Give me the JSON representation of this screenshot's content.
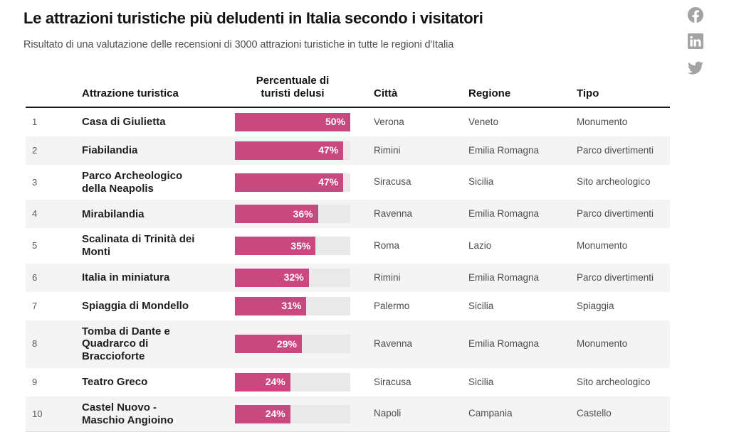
{
  "page": {
    "title": "Le attrazioni turistiche più deludenti in Italia secondo i visitatori",
    "subtitle": "Risultato di una valutazione delle recensioni di 3000 attrazioni turistiche in tutte le regioni d'Italia"
  },
  "social": {
    "facebook_label": "Condividi su Facebook",
    "linkedin_label": "Condividi su LinkedIn",
    "twitter_label": "Condividi su Twitter"
  },
  "table": {
    "headers": {
      "rank": "",
      "attraction": "Attrazione turistica",
      "percent_line1": "Percentuale di",
      "percent_line2": "turisti delusi",
      "city": "Città",
      "region": "Regione",
      "type": "Tipo"
    }
  },
  "chart_data": {
    "type": "table",
    "title": "Le attrazioni turistiche più deludenti in Italia secondo i visitatori",
    "subtitle": "Risultato di una valutazione delle recensioni di 3000 attrazioni turistiche in tutte le regioni d'Italia",
    "columns": [
      "Attrazione turistica",
      "Percentuale di turisti delusi",
      "Città",
      "Regione",
      "Tipo"
    ],
    "bar_column": "Percentuale di turisti delusi",
    "bar_axis_max": 50,
    "bar_unit": "%",
    "rows": [
      {
        "rank": "1",
        "attraction": "Casa di Giulietta",
        "percent": 50,
        "city": "Verona",
        "region": "Veneto",
        "type": "Monumento"
      },
      {
        "rank": "2",
        "attraction": "Fiabilandia",
        "percent": 47,
        "city": "Rimini",
        "region": "Emilia Romagna",
        "type": "Parco divertimenti"
      },
      {
        "rank": "3",
        "attraction": "Parco Archeologico della Neapolis",
        "percent": 47,
        "city": "Siracusa",
        "region": "Sicilia",
        "type": "Sito archeologico"
      },
      {
        "rank": "4",
        "attraction": "Mirabilandia",
        "percent": 36,
        "city": "Ravenna",
        "region": "Emilia Romagna",
        "type": "Parco divertimenti"
      },
      {
        "rank": "5",
        "attraction": "Scalinata di Trinità dei Monti",
        "percent": 35,
        "city": "Roma",
        "region": "Lazio",
        "type": "Monumento"
      },
      {
        "rank": "6",
        "attraction": "Italia in miniatura",
        "percent": 32,
        "city": "Rimini",
        "region": "Emilia Romagna",
        "type": "Parco divertimenti"
      },
      {
        "rank": "7",
        "attraction": "Spiaggia di Mondello",
        "percent": 31,
        "city": "Palermo",
        "region": "Sicilia",
        "type": "Spiaggia"
      },
      {
        "rank": "8",
        "attraction": "Tomba di Dante e Quadrarco di Braccioforte",
        "percent": 29,
        "city": "Ravenna",
        "region": "Emilia Romagna",
        "type": "Monumento"
      },
      {
        "rank": "9",
        "attraction": "Teatro Greco",
        "percent": 24,
        "city": "Siracusa",
        "region": "Sicilia",
        "type": "Sito archeologico"
      },
      {
        "rank": "10",
        "attraction": "Castel Nuovo - Maschio Angioino",
        "percent": 24,
        "city": "Napoli",
        "region": "Campania",
        "type": "Castello"
      }
    ]
  },
  "colors": {
    "bar": "#c9487f",
    "track": "#e9e9e9",
    "rowalt": "#f4f4f4",
    "icon": "#a3a3a3",
    "border": "#1a1a1a"
  }
}
